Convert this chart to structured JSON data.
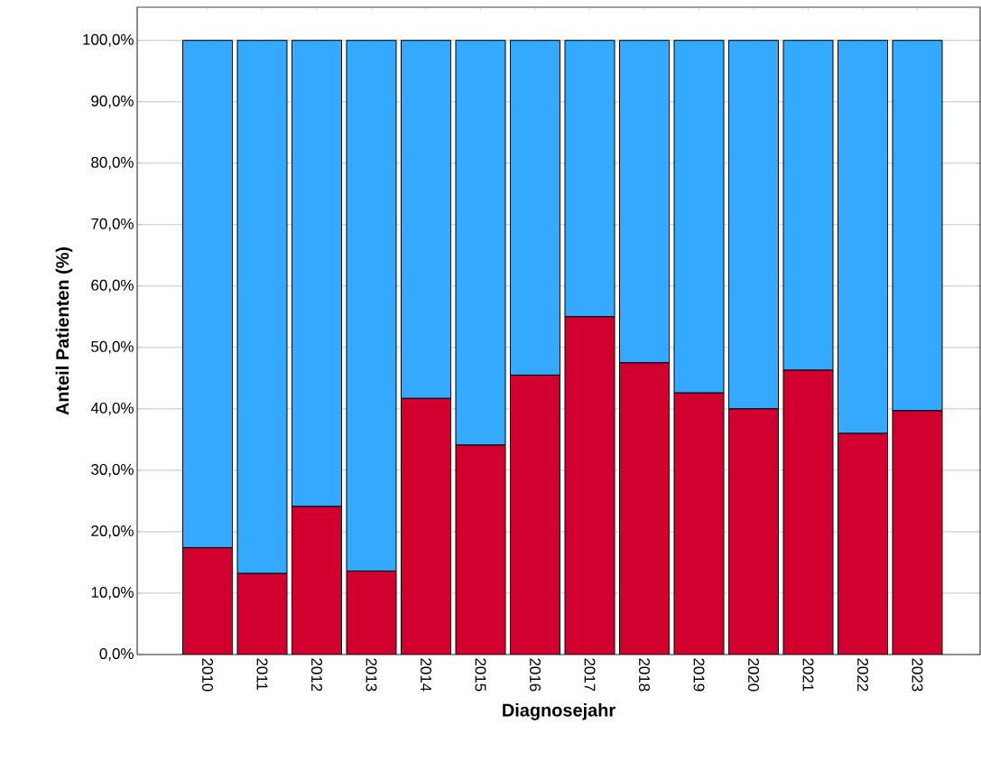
{
  "chart_data": {
    "type": "bar",
    "stacked": true,
    "xlabel": "Diagnosejahr",
    "ylabel": "Anteil Patienten (%)",
    "categories": [
      "2010",
      "2011",
      "2012",
      "2013",
      "2014",
      "2015",
      "2016",
      "2017",
      "2018",
      "2019",
      "2020",
      "2021",
      "2022",
      "2023"
    ],
    "series": [
      {
        "color": "#d2002e",
        "values": [
          17.4,
          13.2,
          24.1,
          13.6,
          41.7,
          34.1,
          45.5,
          55.0,
          47.5,
          42.6,
          40.0,
          46.3,
          36.0,
          39.7
        ]
      },
      {
        "color": "#33aaff",
        "values": [
          82.6,
          86.8,
          75.9,
          86.4,
          58.3,
          65.9,
          54.5,
          45.0,
          52.5,
          57.4,
          60.0,
          53.7,
          64.0,
          60.3
        ]
      }
    ],
    "ylim": [
      0,
      105.4
    ],
    "yticks": [
      {
        "value": 0,
        "label": "0,0%"
      },
      {
        "value": 10,
        "label": "10,0%"
      },
      {
        "value": 20,
        "label": "20,0%"
      },
      {
        "value": 30,
        "label": "30,0%"
      },
      {
        "value": 40,
        "label": "40,0%"
      },
      {
        "value": 50,
        "label": "50,0%"
      },
      {
        "value": 60,
        "label": "60,0%"
      },
      {
        "value": 70,
        "label": "70,0%"
      },
      {
        "value": 80,
        "label": "80,0%"
      },
      {
        "value": 90,
        "label": "90,0%"
      },
      {
        "value": 100,
        "label": "100,0%"
      }
    ],
    "grid": "y"
  }
}
